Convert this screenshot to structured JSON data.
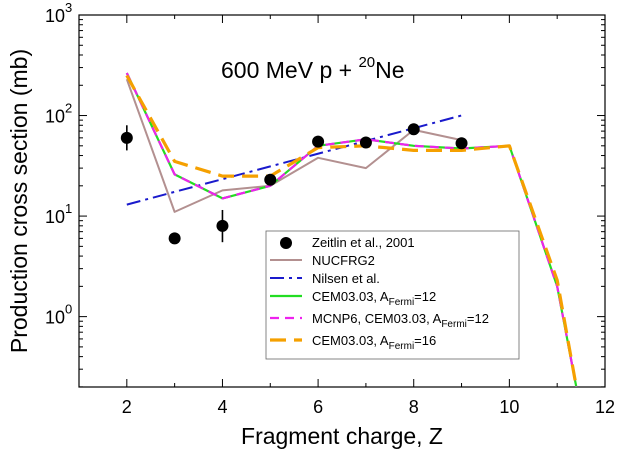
{
  "chart_data": {
    "type": "line",
    "title_main": "600 MeV p + ",
    "title_sup": "20",
    "title_suffix": "Ne",
    "xlabel": "Fragment charge, Z",
    "ylabel": "Production cross section (mb)",
    "xlim": [
      1,
      12
    ],
    "ylim_log10": [
      -0.7,
      3
    ],
    "x_ticks": [
      2,
      4,
      6,
      8,
      10,
      12
    ],
    "x_tick_labels": [
      "2",
      "4",
      "6",
      "8",
      "10",
      "12"
    ],
    "y_ticks": [
      {
        "base": "10",
        "exp": "0",
        "value": 1
      },
      {
        "base": "10",
        "exp": "1",
        "value": 10
      },
      {
        "base": "10",
        "exp": "2",
        "value": 100
      },
      {
        "base": "10",
        "exp": "3",
        "value": 1000
      }
    ],
    "series": [
      {
        "name": "Zeitlin et al., 2001",
        "kind": "points",
        "color": "#000000",
        "points": [
          {
            "x": 2,
            "y": 60,
            "lo": 45,
            "hi": 80
          },
          {
            "x": 3,
            "y": 6,
            "lo": 5.3,
            "hi": 6.8
          },
          {
            "x": 4,
            "y": 8,
            "lo": 5.5,
            "hi": 11.5
          },
          {
            "x": 5,
            "y": 23,
            "lo": 21,
            "hi": 25
          },
          {
            "x": 6,
            "y": 55,
            "lo": 52,
            "hi": 58
          },
          {
            "x": 7,
            "y": 54,
            "lo": 51,
            "hi": 57
          },
          {
            "x": 8,
            "y": 73,
            "lo": 70,
            "hi": 76
          },
          {
            "x": 9,
            "y": 53,
            "lo": 50,
            "hi": 56
          }
        ]
      },
      {
        "name": "NUCFRG2",
        "kind": "line",
        "color": "#b39090",
        "x": [
          2,
          3,
          4,
          5,
          6,
          7,
          8,
          9
        ],
        "y": [
          230,
          11,
          18,
          20,
          38,
          30,
          72,
          57
        ]
      },
      {
        "name": "Nilsen et al.",
        "kind": "line",
        "color": "#1a1acc",
        "x": [
          2,
          9
        ],
        "y": [
          13,
          100
        ]
      },
      {
        "name": "CEM03.03, A",
        "sub": "Fermi",
        "suffix": "=12",
        "kind": "line",
        "color": "#22dd22",
        "x": [
          2,
          3,
          4,
          5,
          6,
          7,
          8,
          9,
          10,
          11,
          11.4
        ],
        "y": [
          265,
          26,
          15,
          20,
          50,
          58,
          50,
          47,
          50,
          2,
          0.2
        ]
      },
      {
        "name": "MCNP6, CEM03.03, A",
        "sub": "Fermi",
        "suffix": "=12",
        "kind": "line",
        "color": "#ee22ee",
        "x": [
          2,
          3,
          4,
          5,
          6,
          7,
          8,
          9,
          10,
          11,
          11.4
        ],
        "y": [
          265,
          26,
          15,
          20,
          50,
          58,
          50,
          47,
          50,
          2,
          0.2
        ]
      },
      {
        "name": "CEM03.03, A",
        "sub": "Fermi",
        "suffix": "=16",
        "kind": "line",
        "color": "#f5a000",
        "x": [
          2,
          3,
          4,
          5,
          6,
          7,
          8,
          9,
          10,
          11,
          11.4
        ],
        "y": [
          250,
          35,
          25,
          25,
          48,
          50,
          45,
          45,
          50,
          2.3,
          0.2
        ]
      }
    ]
  }
}
